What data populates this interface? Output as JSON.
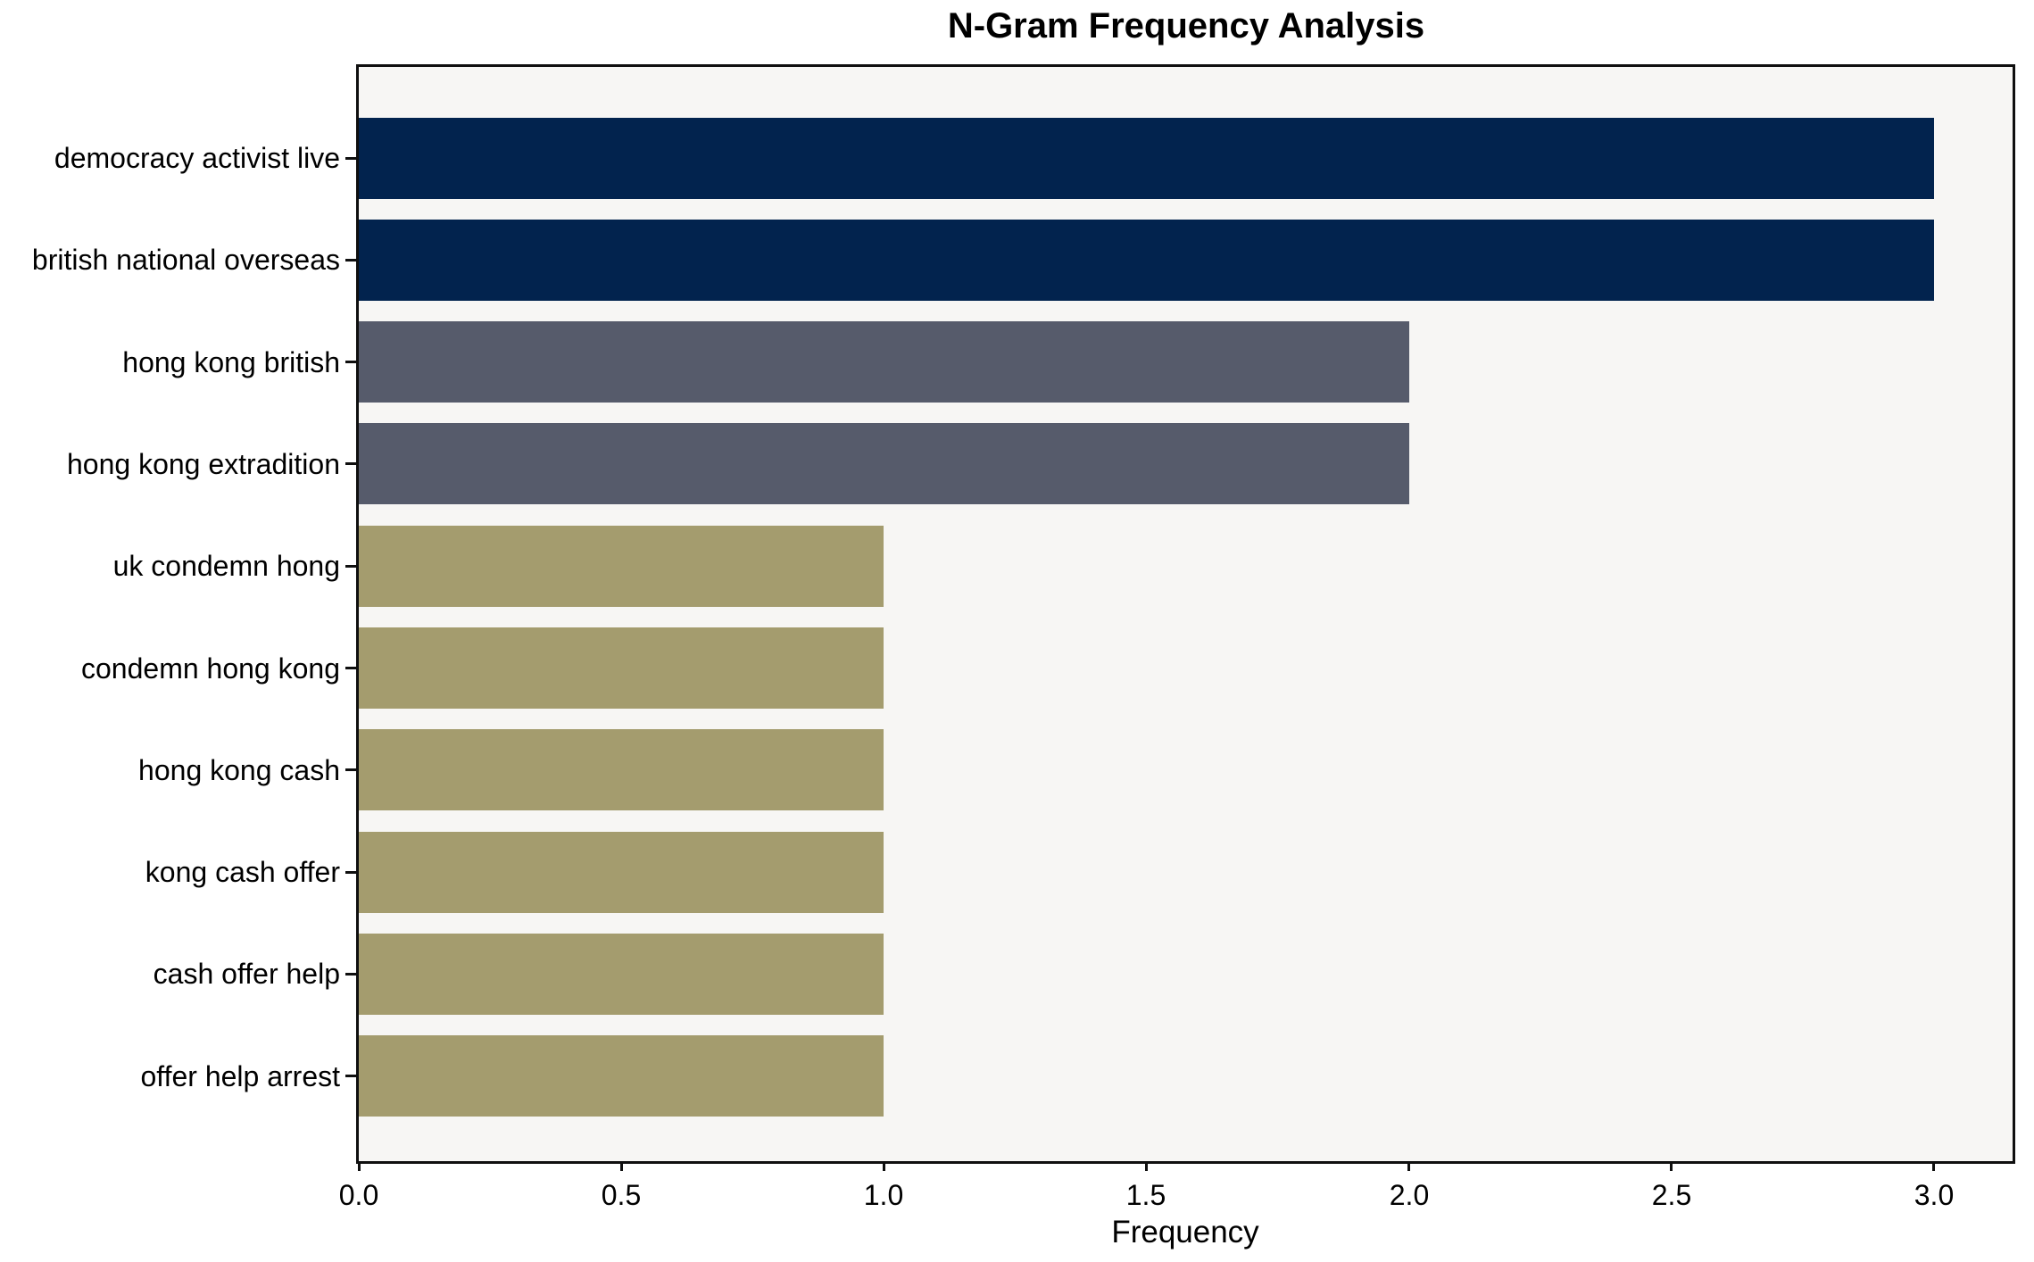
{
  "chart_data": {
    "type": "bar",
    "orientation": "horizontal",
    "title": "N-Gram Frequency Analysis",
    "xlabel": "Frequency",
    "ylabel": "",
    "categories": [
      "democracy activist live",
      "british national overseas",
      "hong kong british",
      "hong kong extradition",
      "uk condemn hong",
      "condemn hong kong",
      "hong kong cash",
      "kong cash offer",
      "cash offer help",
      "offer help arrest"
    ],
    "values": [
      3,
      3,
      2,
      2,
      1,
      1,
      1,
      1,
      1,
      1
    ],
    "bar_colors": [
      "#02234e",
      "#02234e",
      "#565b6b",
      "#565b6b",
      "#a49c6e",
      "#a49c6e",
      "#a49c6e",
      "#a49c6e",
      "#a49c6e",
      "#a49c6e"
    ],
    "xlim": [
      0,
      3.15
    ],
    "xticks": [
      {
        "value": 0.0,
        "label": "0.0"
      },
      {
        "value": 0.5,
        "label": "0.5"
      },
      {
        "value": 1.0,
        "label": "1.0"
      },
      {
        "value": 1.5,
        "label": "1.5"
      },
      {
        "value": 2.0,
        "label": "2.0"
      },
      {
        "value": 2.5,
        "label": "2.5"
      },
      {
        "value": 3.0,
        "label": "3.0"
      }
    ],
    "grid": false,
    "legend": null,
    "colors": {
      "figure_background": "#ffffff",
      "plot_background": "#f7f6f4",
      "axis": "#0f0f0f",
      "text": "#000000",
      "freq3": "#02234e",
      "freq2": "#565b6b",
      "freq1": "#a49c6e"
    }
  }
}
